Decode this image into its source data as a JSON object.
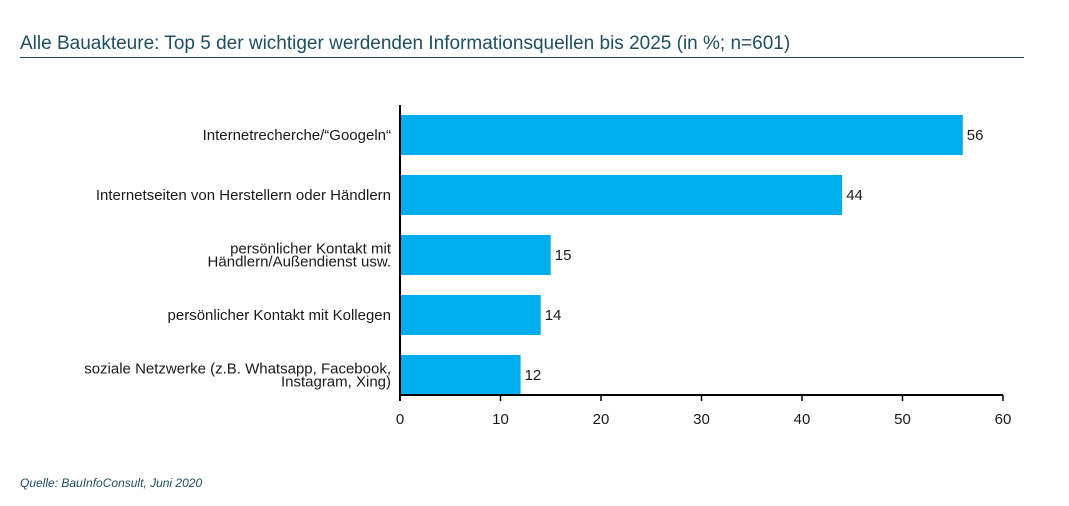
{
  "chart_data": {
    "type": "bar",
    "orientation": "horizontal",
    "title": "Alle Bauakteure: Top 5 der wichtiger werdenden Informationsquellen bis 2025 (in %; n=601)",
    "categories": [
      [
        "Internetrecherche/“Googeln“"
      ],
      [
        "Internetseiten von Herstellern oder Händlern"
      ],
      [
        "persönlicher Kontakt mit",
        "Händlern/Außendienst usw."
      ],
      [
        "persönlicher Kontakt mit Kollegen"
      ],
      [
        "soziale Netzwerke (z.B. Whatsapp, Facebook,",
        "Instagram, Xing)"
      ]
    ],
    "values": [
      56,
      44,
      15,
      14,
      12
    ],
    "value_labels": [
      "56",
      "44",
      "15",
      "14",
      "12"
    ],
    "xlim": [
      0,
      60
    ],
    "xticks": [
      0,
      10,
      20,
      30,
      40,
      50,
      60
    ],
    "bar_color": "#00aeef",
    "grid": false
  },
  "source": "Quelle: BauInfoConsult, Juni 2020",
  "colors": {
    "title": "#1f4e5f",
    "bar": "#00aeef"
  }
}
